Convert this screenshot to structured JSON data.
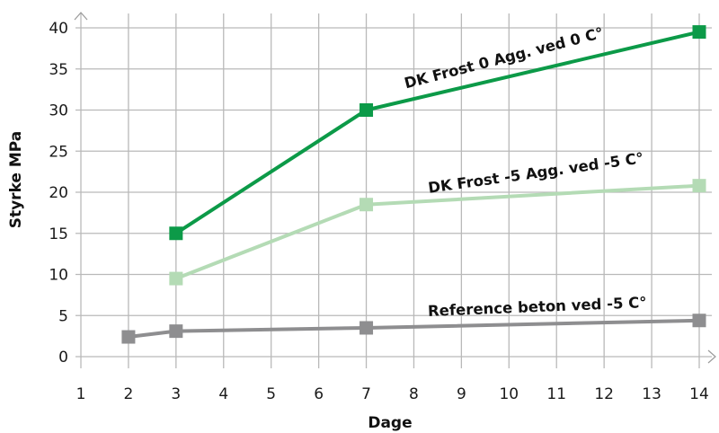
{
  "chart_data": {
    "type": "line",
    "title": "",
    "xlabel": "Dage",
    "ylabel": "Styrke MPa",
    "x_ticks": [
      1,
      2,
      3,
      4,
      5,
      6,
      7,
      8,
      9,
      10,
      11,
      12,
      13,
      14
    ],
    "y_ticks": [
      0,
      5,
      10,
      15,
      20,
      25,
      30,
      35,
      40
    ],
    "xlim": [
      1,
      14
    ],
    "ylim": [
      0,
      40
    ],
    "grid": true,
    "legend": "inline labels",
    "series": [
      {
        "name": "DK Frost 0 Agg. ved 0 C°",
        "color": "#0c9a48",
        "marker": "square",
        "points": [
          {
            "x": 3,
            "y": 15
          },
          {
            "x": 7,
            "y": 30
          },
          {
            "x": 14,
            "y": 39.5
          }
        ]
      },
      {
        "name": "DK Frost -5 Agg. ved -5 C°",
        "color": "#b4dbb5",
        "marker": "square",
        "points": [
          {
            "x": 3,
            "y": 9.5
          },
          {
            "x": 7,
            "y": 18.5
          },
          {
            "x": 14,
            "y": 20.8
          }
        ]
      },
      {
        "name": "Reference beton ved -5 C°",
        "color": "#8e8e90",
        "marker": "square",
        "points": [
          {
            "x": 2,
            "y": 2.4
          },
          {
            "x": 3,
            "y": 3.1
          },
          {
            "x": 7,
            "y": 3.5
          },
          {
            "x": 14,
            "y": 4.4
          }
        ]
      }
    ]
  }
}
